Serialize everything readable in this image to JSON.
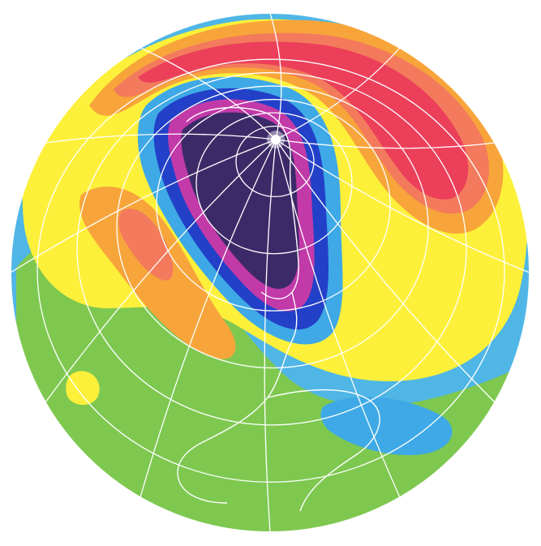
{
  "map": {
    "projection": "orthographic",
    "center": "south-pole",
    "has_text": false,
    "colors": {
      "ocean": "#4fb6e6",
      "low_green": "#7ec850",
      "yellow": "#fdf03a",
      "orange": "#f7a53b",
      "salmon": "#f37a5c",
      "red": "#ec3f5a",
      "light_blue": "#3ea9e6",
      "blue": "#2240c8",
      "magenta": "#c13aa8",
      "dark_purple": "#3c2a68",
      "gridline": "#ffffff",
      "coastline": "#ffffff"
    },
    "graticule": {
      "meridians": 12,
      "parallels": 6
    },
    "pole_marker_icon": "star-burst-icon"
  }
}
